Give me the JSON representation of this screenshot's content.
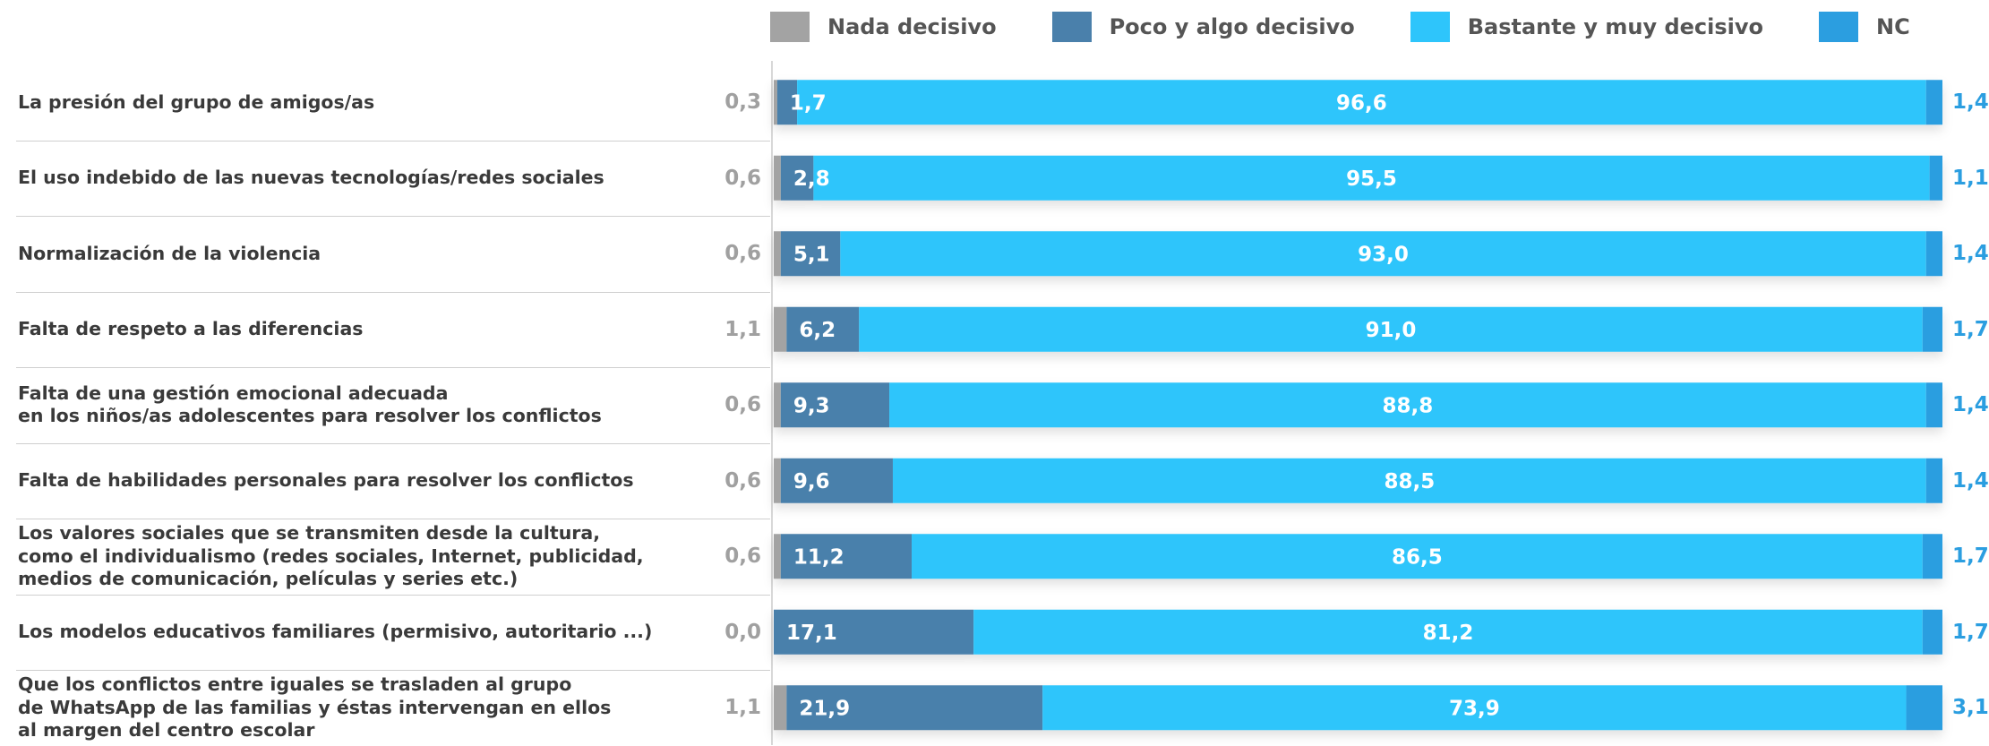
{
  "colors": {
    "nada": "#a3a3a3",
    "poco": "#4a80ab",
    "bastante": "#2ec5fb",
    "nc": "#2b9ee0",
    "label_on_bar": "#ffffff",
    "left_value": "#a0a0a0",
    "right_value": "#2b9ee0"
  },
  "chart_data": {
    "type": "bar",
    "orientation": "horizontal",
    "stacked": true,
    "unit": "%",
    "legend_position": "top",
    "categories": [
      "La presión del grupo de amigos/as",
      "El uso indebido de las nuevas tecnologías/redes sociales",
      "Normalización de la violencia",
      "Falta de respeto a las diferencias",
      "Falta de una gestión emocional adecuada\nen los niños/as adolescentes para resolver los conflictos",
      "Falta de habilidades personales para resolver los conflictos",
      "Los valores sociales que se transmiten desde la cultura,\ncomo el individualismo (redes sociales, Internet, publicidad,\nmedios de comunicación, películas y series etc.)",
      "Los modelos educativos familiares (permisivo, autoritario ...)",
      "Que los conflictos entre iguales se trasladen al grupo\nde WhatsApp de las familias y éstas intervengan en ellos\nal margen del centro escolar"
    ],
    "series": [
      {
        "name": "Nada decisivo",
        "values": [
          0.3,
          0.6,
          0.6,
          1.1,
          0.6,
          0.6,
          0.6,
          0.0,
          1.1
        ],
        "labels": [
          "0,3",
          "0,6",
          "0,6",
          "1,1",
          "0,6",
          "0,6",
          "0,6",
          "0,0",
          "1,1"
        ]
      },
      {
        "name": "Poco y algo decisivo",
        "values": [
          1.7,
          2.8,
          5.1,
          6.2,
          9.3,
          9.6,
          11.2,
          17.1,
          21.9
        ],
        "labels": [
          "1,7",
          "2,8",
          "5,1",
          "6,2",
          "9,3",
          "9,6",
          "11,2",
          "17,1",
          "21,9"
        ]
      },
      {
        "name": "Bastante y muy  decisivo",
        "values": [
          96.6,
          95.5,
          93.0,
          91.0,
          88.8,
          88.5,
          86.5,
          81.2,
          73.9
        ],
        "labels": [
          "96,6",
          "95,5",
          "93,0",
          "91,0",
          "88,8",
          "88,5",
          "86,5",
          "81,2",
          "73,9"
        ]
      },
      {
        "name": "NC",
        "values": [
          1.4,
          1.1,
          1.4,
          1.7,
          1.4,
          1.4,
          1.7,
          1.7,
          3.1
        ],
        "labels": [
          "1,4",
          "1,1",
          "1,4",
          "1,7",
          "1,4",
          "1,4",
          "1,7",
          "1,7",
          "3,1"
        ]
      }
    ],
    "xlim": [
      0,
      100
    ]
  }
}
